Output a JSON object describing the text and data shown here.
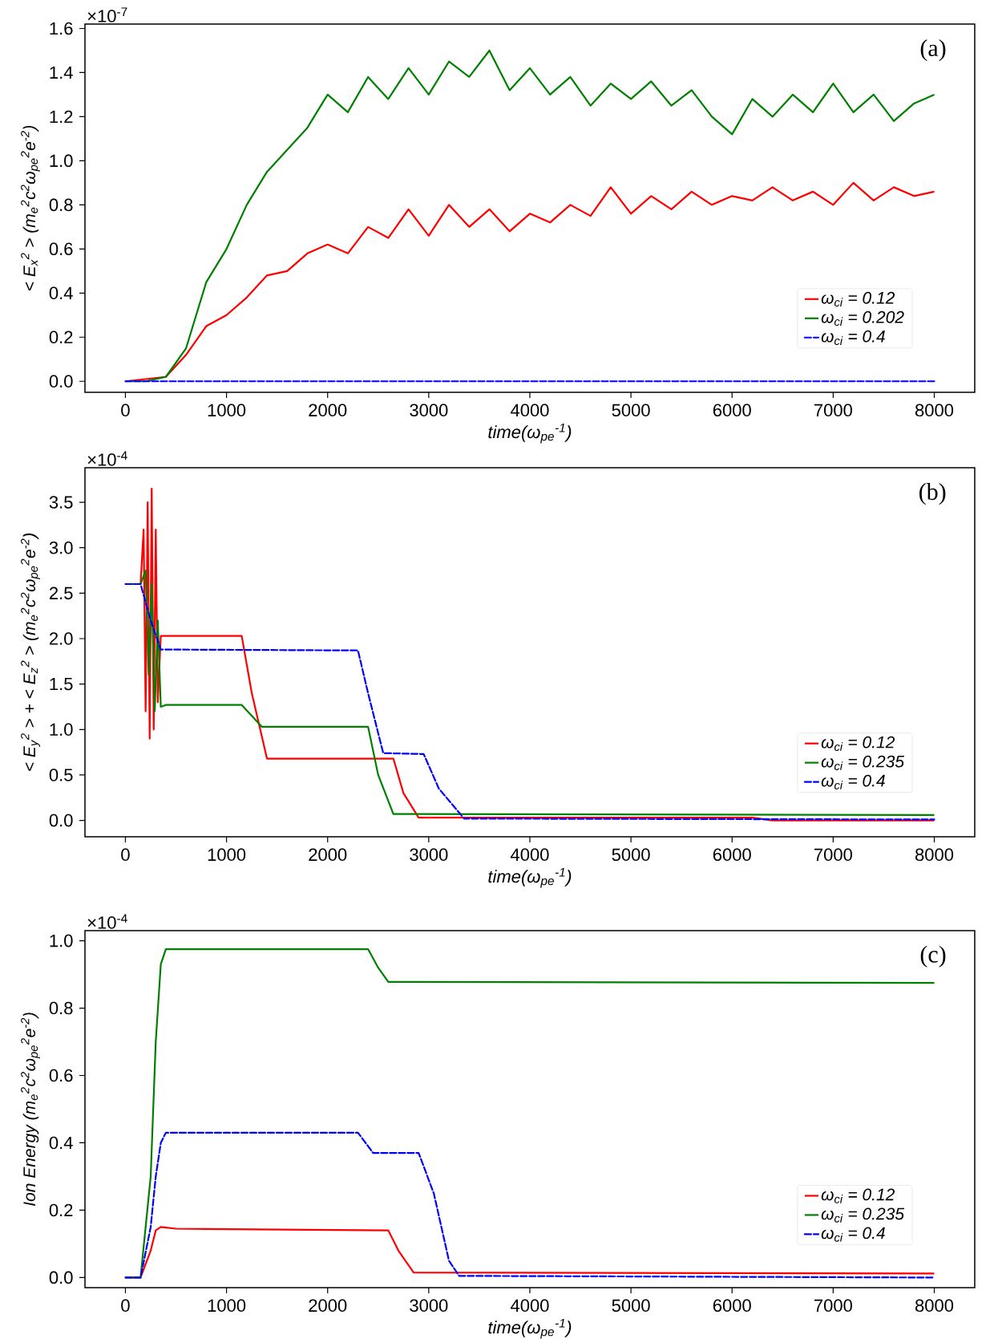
{
  "chart_data": [
    {
      "type": "line",
      "xlabel": "time(ω$_{pe}$$^{-1}$)",
      "ylabel": "< E$_{x}$$^{2}$ > (m$_{e}$$^{2}$c$^{2}$ω$_{pe}$$^{2}$e$^{-2}$)",
      "annotations": [
        "(a)",
        "×10$^{-7}$"
      ],
      "x": [
        0,
        200,
        400,
        600,
        800,
        1000,
        1200,
        1400,
        1600,
        1800,
        2000,
        2200,
        2400,
        2600,
        2800,
        3000,
        3200,
        3400,
        3600,
        3800,
        4000,
        4200,
        4400,
        4600,
        4800,
        5000,
        5200,
        5400,
        5600,
        5800,
        6000,
        6200,
        6400,
        6600,
        6800,
        7000,
        7200,
        7400,
        7600,
        7800,
        8000
      ],
      "series": [
        {
          "name": "ω$_{ci}$ = 0.12",
          "color": "#ff0000",
          "line_style": "solid",
          "values": [
            0,
            0.01,
            0.02,
            0.12,
            0.25,
            0.3,
            0.38,
            0.48,
            0.5,
            0.58,
            0.62,
            0.58,
            0.7,
            0.65,
            0.78,
            0.66,
            0.8,
            0.7,
            0.78,
            0.68,
            0.76,
            0.72,
            0.8,
            0.75,
            0.88,
            0.76,
            0.84,
            0.78,
            0.86,
            0.8,
            0.84,
            0.82,
            0.88,
            0.82,
            0.86,
            0.8,
            0.9,
            0.82,
            0.88,
            0.84,
            0.86
          ]
        },
        {
          "name": "ω$_{ci}$ = 0.202",
          "color": "#008000",
          "line_style": "solid",
          "values": [
            0,
            0,
            0.02,
            0.15,
            0.45,
            0.6,
            0.8,
            0.95,
            1.05,
            1.15,
            1.3,
            1.22,
            1.38,
            1.28,
            1.42,
            1.3,
            1.45,
            1.38,
            1.5,
            1.32,
            1.42,
            1.3,
            1.38,
            1.25,
            1.35,
            1.28,
            1.36,
            1.25,
            1.32,
            1.2,
            1.12,
            1.28,
            1.2,
            1.3,
            1.22,
            1.35,
            1.22,
            1.3,
            1.18,
            1.26,
            1.3
          ]
        },
        {
          "name": "ω$_{ci}$ = 0.4",
          "color": "#0000ff",
          "line_style": "dashed",
          "x": [
            0,
            8000
          ],
          "values": [
            0,
            0
          ]
        }
      ],
      "xlim": [
        -400,
        8400
      ],
      "xticks": [
        0,
        1000,
        2000,
        3000,
        4000,
        5000,
        6000,
        7000,
        8000
      ],
      "ylim": [
        -0.05,
        1.62
      ],
      "yticks": [
        {
          "value": 0,
          "label": "0.0"
        },
        {
          "value": 0.2,
          "label": "0.2"
        },
        {
          "value": 0.4,
          "label": "0.4"
        },
        {
          "value": 0.6,
          "label": "0.6"
        },
        {
          "value": 0.8,
          "label": "0.8"
        },
        {
          "value": 1.0,
          "label": "1.0"
        },
        {
          "value": 1.2,
          "label": "1.2"
        },
        {
          "value": 1.4,
          "label": "1.4"
        },
        {
          "value": 1.6,
          "label": "1.6"
        }
      ],
      "legend": "bottom right",
      "grid": false,
      "marker": "none"
    },
    {
      "type": "line",
      "xlabel": "time(ω$_{pe}$$^{-1}$)",
      "ylabel": "< E$_{y}$$^{2}$ > + < E$_{z}$$^{2}$ > (m$_{e}$$^{2}$c$^{2}$ω$_{pe}$$^{2}$e$^{-2}$)",
      "annotations": [
        "(b)",
        "×10$^{-4}$"
      ],
      "series": [
        {
          "name": "ω$_{ci}$ = 0.12",
          "color": "#ff0000",
          "line_style": "solid",
          "x": [
            0,
            150,
            180,
            200,
            220,
            240,
            260,
            280,
            300,
            320,
            350,
            1150,
            1250,
            1400,
            2650,
            2750,
            2900,
            6200,
            6400,
            8000
          ],
          "values": [
            2.6,
            2.6,
            3.2,
            1.2,
            3.5,
            0.9,
            3.65,
            1.0,
            3.2,
            1.3,
            2.03,
            2.03,
            1.4,
            0.68,
            0.68,
            0.3,
            0.03,
            0.03,
            0.0,
            0.0
          ]
        },
        {
          "name": "ω$_{ci}$ = 0.235",
          "color": "#008000",
          "line_style": "solid",
          "x": [
            0,
            150,
            200,
            230,
            260,
            290,
            320,
            350,
            400,
            1150,
            1250,
            1350,
            2400,
            2500,
            2650,
            8000
          ],
          "values": [
            2.6,
            2.6,
            2.75,
            1.6,
            2.6,
            1.2,
            2.2,
            1.25,
            1.27,
            1.27,
            1.15,
            1.03,
            1.03,
            0.5,
            0.07,
            0.06
          ]
        },
        {
          "name": "ω$_{ci}$ = 0.4",
          "color": "#0000ff",
          "line_style": "dashed",
          "x": [
            0,
            150,
            250,
            350,
            2300,
            2400,
            2550,
            2950,
            3100,
            3350,
            8000
          ],
          "values": [
            2.6,
            2.6,
            2.2,
            1.88,
            1.87,
            1.4,
            0.74,
            0.73,
            0.35,
            0.02,
            0.01
          ]
        }
      ],
      "xlim": [
        -400,
        8400
      ],
      "xticks": [
        0,
        1000,
        2000,
        3000,
        4000,
        5000,
        6000,
        7000,
        8000
      ],
      "ylim": [
        -0.18,
        3.88
      ],
      "yticks": [
        {
          "value": 0,
          "label": "0.0"
        },
        {
          "value": 0.5,
          "label": "0.5"
        },
        {
          "value": 1.0,
          "label": "1.0"
        },
        {
          "value": 1.5,
          "label": "1.5"
        },
        {
          "value": 2.0,
          "label": "2.0"
        },
        {
          "value": 2.5,
          "label": "2.5"
        },
        {
          "value": 3.0,
          "label": "3.0"
        },
        {
          "value": 3.5,
          "label": "3.5"
        }
      ],
      "legend": "bottom right",
      "grid": false,
      "marker": "none"
    },
    {
      "type": "line",
      "xlabel": "time(ω$_{pe}$$^{-1}$)",
      "ylabel": "Ion Energy (m$_{e}$$^{2}$c$^{2}$ω$_{pe}$$^{2}$e$^{-2}$)",
      "annotations": [
        "(c)",
        "×10$^{-4}$"
      ],
      "series": [
        {
          "name": "ω$_{ci}$ = 0.12",
          "color": "#ff0000",
          "line_style": "solid",
          "x": [
            0,
            150,
            250,
            300,
            350,
            500,
            2600,
            2700,
            2850,
            8000
          ],
          "values": [
            0,
            0,
            0.08,
            0.14,
            0.15,
            0.145,
            0.14,
            0.08,
            0.015,
            0.012
          ]
        },
        {
          "name": "ω$_{ci}$ = 0.235",
          "color": "#008000",
          "line_style": "solid",
          "x": [
            0,
            150,
            250,
            300,
            350,
            400,
            2400,
            2500,
            2600,
            8000
          ],
          "values": [
            0,
            0,
            0.3,
            0.7,
            0.93,
            0.975,
            0.975,
            0.92,
            0.878,
            0.875
          ]
        },
        {
          "name": "ω$_{ci}$ = 0.4",
          "color": "#0000ff",
          "line_style": "dashed",
          "x": [
            0,
            150,
            250,
            300,
            350,
            400,
            2300,
            2400,
            2450,
            2900,
            3050,
            3200,
            3300,
            8000
          ],
          "values": [
            0,
            0,
            0.15,
            0.3,
            0.4,
            0.43,
            0.43,
            0.39,
            0.37,
            0.37,
            0.25,
            0.05,
            0.005,
            0.0
          ]
        }
      ],
      "xlim": [
        -400,
        8400
      ],
      "xticks": [
        0,
        1000,
        2000,
        3000,
        4000,
        5000,
        6000,
        7000,
        8000
      ],
      "ylim": [
        -0.03,
        1.03
      ],
      "yticks": [
        {
          "value": 0,
          "label": "0.0"
        },
        {
          "value": 0.2,
          "label": "0.2"
        },
        {
          "value": 0.4,
          "label": "0.4"
        },
        {
          "value": 0.6,
          "label": "0.6"
        },
        {
          "value": 0.8,
          "label": "0.8"
        },
        {
          "value": 1.0,
          "label": "1.0"
        }
      ],
      "legend": "bottom right",
      "grid": false,
      "marker": "none"
    }
  ]
}
